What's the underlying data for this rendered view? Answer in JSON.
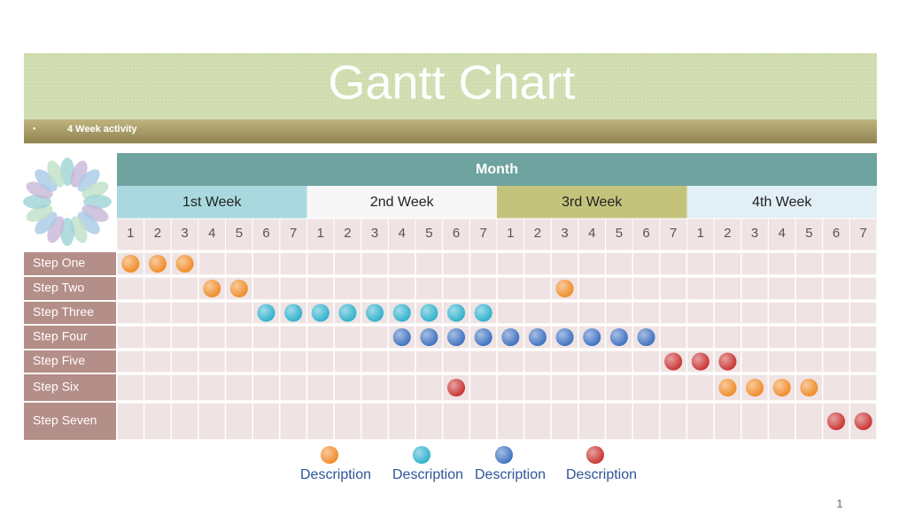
{
  "header": {
    "title": "Gantt Chart",
    "subtitle": "4 Week activity"
  },
  "table": {
    "month": "Month",
    "weeks": [
      {
        "label": "1st Week",
        "color": "#a9d9de",
        "days": [
          1,
          2,
          3,
          4,
          5,
          6,
          7
        ]
      },
      {
        "label": "2nd Week",
        "color": "#f7f7f7",
        "days": [
          1,
          2,
          3,
          4,
          5,
          6,
          7
        ]
      },
      {
        "label": "3rd Week",
        "color": "#c4c37c",
        "days": [
          1,
          2,
          3,
          4,
          5,
          6,
          7
        ]
      },
      {
        "label": "4th Week",
        "color": "#e2eff6",
        "days": [
          1,
          2,
          3,
          4,
          5,
          6,
          7
        ]
      }
    ],
    "steps": [
      {
        "label": "Step One",
        "dots": [
          {
            "week": "1st Week",
            "day": 1,
            "color": "#f08a24"
          },
          {
            "week": "1st Week",
            "day": 2,
            "color": "#f08a24"
          },
          {
            "week": "1st Week",
            "day": 3,
            "color": "#f08a24"
          }
        ]
      },
      {
        "label": "Step Two",
        "dots": [
          {
            "week": "1st Week",
            "day": 4,
            "color": "#f08a24"
          },
          {
            "week": "1st Week",
            "day": 5,
            "color": "#f08a24"
          },
          {
            "week": "3rd Week",
            "day": 3,
            "color": "#f08a24"
          }
        ]
      },
      {
        "label": "Step Three",
        "dots": [
          {
            "week": "1st Week",
            "day": 6,
            "color": "#2bb0cc"
          },
          {
            "week": "1st Week",
            "day": 7,
            "color": "#2bb0cc"
          },
          {
            "week": "2nd Week",
            "day": 1,
            "color": "#2bb0cc"
          },
          {
            "week": "2nd Week",
            "day": 2,
            "color": "#2bb0cc"
          },
          {
            "week": "2nd Week",
            "day": 3,
            "color": "#2bb0cc"
          },
          {
            "week": "2nd Week",
            "day": 4,
            "color": "#2bb0cc"
          },
          {
            "week": "2nd Week",
            "day": 5,
            "color": "#2bb0cc"
          },
          {
            "week": "2nd Week",
            "day": 6,
            "color": "#2bb0cc"
          },
          {
            "week": "2nd Week",
            "day": 7,
            "color": "#2bb0cc"
          }
        ]
      },
      {
        "label": "Step Four",
        "dots": [
          {
            "week": "2nd Week",
            "day": 4,
            "color": "#3a6fc0"
          },
          {
            "week": "2nd Week",
            "day": 5,
            "color": "#3a6fc0"
          },
          {
            "week": "2nd Week",
            "day": 6,
            "color": "#3a6fc0"
          },
          {
            "week": "2nd Week",
            "day": 7,
            "color": "#3a6fc0"
          },
          {
            "week": "3rd Week",
            "day": 1,
            "color": "#3a6fc0"
          },
          {
            "week": "3rd Week",
            "day": 2,
            "color": "#3a6fc0"
          },
          {
            "week": "3rd Week",
            "day": 3,
            "color": "#3a6fc0"
          },
          {
            "week": "3rd Week",
            "day": 4,
            "color": "#3a6fc0"
          },
          {
            "week": "3rd Week",
            "day": 5,
            "color": "#3a6fc0"
          },
          {
            "week": "3rd Week",
            "day": 6,
            "color": "#3a6fc0"
          }
        ]
      },
      {
        "label": "Step Five",
        "dots": [
          {
            "week": "3rd Week",
            "day": 7,
            "color": "#c8302e"
          },
          {
            "week": "4th Week",
            "day": 1,
            "color": "#c8302e"
          },
          {
            "week": "4th Week",
            "day": 2,
            "color": "#c8302e"
          }
        ]
      },
      {
        "label": "Step Six",
        "dots": [
          {
            "week": "2nd Week",
            "day": 6,
            "color": "#c8302e"
          },
          {
            "week": "4th Week",
            "day": 2,
            "color": "#f08a24"
          },
          {
            "week": "4th Week",
            "day": 3,
            "color": "#f08a24"
          },
          {
            "week": "4th Week",
            "day": 4,
            "color": "#f08a24"
          },
          {
            "week": "4th Week",
            "day": 5,
            "color": "#f08a24"
          }
        ]
      },
      {
        "label": "Step Seven",
        "dots": [
          {
            "week": "4th Week",
            "day": 6,
            "color": "#c8302e"
          },
          {
            "week": "4th Week",
            "day": 7,
            "color": "#c8302e"
          }
        ]
      }
    ]
  },
  "legend": [
    {
      "label": "Description",
      "color": "#f08a24"
    },
    {
      "label": "Description",
      "color": "#2bb0cc"
    },
    {
      "label": "Description",
      "color": "#3a6fc0"
    },
    {
      "label": "Description",
      "color": "#c8302e"
    }
  ],
  "page_number": "1"
}
